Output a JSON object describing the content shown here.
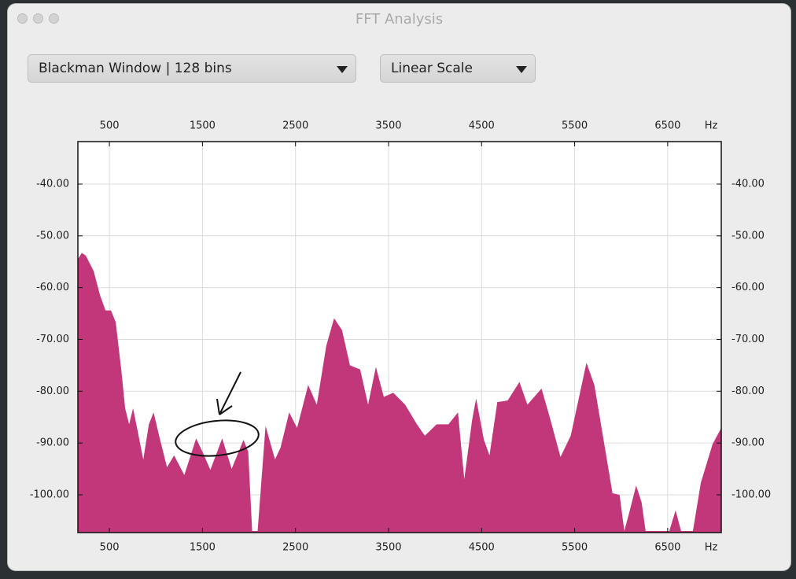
{
  "window": {
    "title": "FFT Analysis"
  },
  "controls": {
    "window_function": "Blackman Window | 128 bins",
    "scale": "Linear Scale"
  },
  "chart_data": {
    "type": "area",
    "x_label": "Hz",
    "x": [
      161,
      203,
      246,
      331,
      398,
      458,
      517,
      568,
      627,
      669,
      712,
      754,
      797,
      864,
      924,
      975,
      1034,
      1119,
      1195,
      1305,
      1432,
      1500,
      1585,
      1712,
      1814,
      1941,
      1992,
      2034,
      2093,
      2178,
      2280,
      2339,
      2432,
      2517,
      2636,
      2729,
      2831,
      2915,
      3000,
      3085,
      3195,
      3280,
      3364,
      3449,
      3551,
      3678,
      3805,
      3890,
      4017,
      4144,
      4246,
      4314,
      4398,
      4441,
      4525,
      4585,
      4669,
      4780,
      4907,
      4992,
      5144,
      5229,
      5348,
      5458,
      5627,
      5712,
      5839,
      5907,
      5983,
      6034,
      6093,
      6161,
      6220,
      6263,
      6517,
      6585,
      6644,
      6771,
      6856,
      6983,
      7076
    ],
    "values": [
      -54.5,
      -53.3,
      -53.8,
      -56.8,
      -61.4,
      -64.4,
      -64.4,
      -66.7,
      -75.8,
      -83.3,
      -86.4,
      -83.3,
      -87.1,
      -93.2,
      -86.4,
      -84.1,
      -88.6,
      -94.7,
      -92.4,
      -96.2,
      -89.1,
      -91.7,
      -95.2,
      -89.1,
      -95.0,
      -89.4,
      -91.7,
      -107.0,
      -107.0,
      -86.7,
      -93.2,
      -90.9,
      -84.1,
      -87.1,
      -78.8,
      -82.6,
      -71.2,
      -65.9,
      -68.2,
      -75.0,
      -75.8,
      -82.6,
      -75.3,
      -81.1,
      -80.3,
      -82.6,
      -86.4,
      -88.6,
      -86.4,
      -86.4,
      -84.1,
      -97.0,
      -85.6,
      -81.4,
      -89.4,
      -92.4,
      -82.1,
      -81.8,
      -78.2,
      -82.6,
      -79.5,
      -84.8,
      -92.7,
      -88.6,
      -74.5,
      -78.8,
      -92.4,
      -99.7,
      -100.0,
      -107.0,
      -103.0,
      -98.2,
      -101.5,
      -107.0,
      -107.0,
      -103.0,
      -107.0,
      -107.0,
      -97.7,
      -90.2,
      -87.1
    ],
    "color": "#c2377a",
    "xlim": [
      161,
      7076
    ],
    "ylim": [
      -107.3,
      -31.8
    ],
    "xticks": [
      500,
      1500,
      2500,
      3500,
      4500,
      5500,
      6500
    ],
    "yticks": [
      {
        "value": -100,
        "label": "-100.00"
      },
      {
        "value": -90,
        "label": "-90.00"
      },
      {
        "value": -80,
        "label": "-80.00"
      },
      {
        "value": -70,
        "label": "-70.00"
      },
      {
        "value": -60,
        "label": "-60.00"
      },
      {
        "value": -50,
        "label": "-50.00"
      },
      {
        "value": -40,
        "label": "-40.00"
      }
    ],
    "grid": true
  }
}
